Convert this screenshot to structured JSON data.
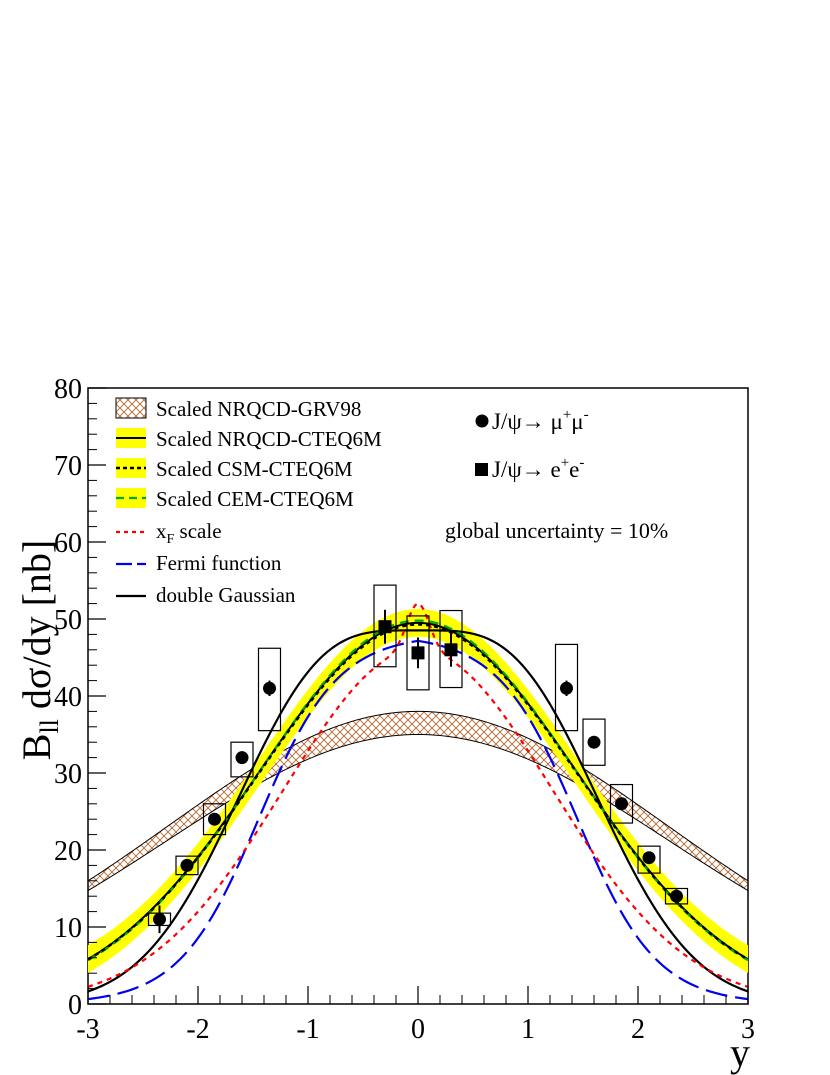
{
  "chart_data": {
    "type": "line",
    "xlabel": "y",
    "ylabel_main": "B",
    "ylabel_sub": "ll",
    "ylabel_rest": " dσ/dy  [nb]",
    "xlim": [
      -3,
      3
    ],
    "ylim": [
      0,
      80
    ],
    "x_ticks": [
      -3,
      -2,
      -1,
      0,
      1,
      2,
      3
    ],
    "y_ticks": [
      0,
      10,
      20,
      30,
      40,
      50,
      60,
      70,
      80
    ],
    "colors": {
      "band_yellow": "#ffff00",
      "hatch_brown": "#b5652e",
      "red": "#ff0000",
      "blue": "#0000ee",
      "green": "#00aa00",
      "black": "#000000"
    },
    "legend": [
      {
        "label": "Scaled NRQCD-GRV98",
        "style": "hatch"
      },
      {
        "label": "Scaled NRQCD-CTEQ6M",
        "style": "yellow-solid"
      },
      {
        "label": "Scaled CSM-CTEQ6M",
        "style": "yellow-dotted"
      },
      {
        "label": "Scaled CEM-CTEQ6M",
        "style": "yellow-green-dashed"
      },
      {
        "label": "x",
        "sub": "F",
        "label_rest": " scale",
        "style": "red-dotted"
      },
      {
        "label": "Fermi function",
        "style": "blue-longdash"
      },
      {
        "label": "double Gaussian",
        "style": "black-solid"
      }
    ],
    "channels": [
      {
        "label": "J/ψ→ μ",
        "sup1": "+",
        "label2": "μ",
        "sup2": "-",
        "marker": "circle"
      },
      {
        "label": "J/ψ→ e",
        "sup1": "+",
        "label2": "e",
        "sup2": "-",
        "marker": "square"
      }
    ],
    "annotation": "global uncertainty = 10%",
    "series": [
      {
        "name": "J/ψ→μ+μ- data",
        "marker": "circle",
        "points": [
          {
            "x": -2.35,
            "y": 11,
            "err": 1.8,
            "sys_lo": 10.2,
            "sys_hi": 11.8
          },
          {
            "x": -2.1,
            "y": 18,
            "err": 0.6,
            "sys_lo": 16.8,
            "sys_hi": 19.2
          },
          {
            "x": -1.85,
            "y": 24,
            "err": 0.7,
            "sys_lo": 22.0,
            "sys_hi": 26.0
          },
          {
            "x": -1.6,
            "y": 32,
            "err": 0.8,
            "sys_lo": 29.5,
            "sys_hi": 34.0
          },
          {
            "x": -1.35,
            "y": 41,
            "err": 1.0,
            "sys_lo": 35.5,
            "sys_hi": 46.2
          },
          {
            "x": 1.35,
            "y": 41,
            "err": 1.0,
            "sys_lo": 35.5,
            "sys_hi": 46.7
          },
          {
            "x": 1.6,
            "y": 34,
            "err": 0.8,
            "sys_lo": 31.0,
            "sys_hi": 37.0
          },
          {
            "x": 1.85,
            "y": 26,
            "err": 0.7,
            "sys_lo": 23.5,
            "sys_hi": 28.5
          },
          {
            "x": 2.1,
            "y": 19,
            "err": 0.6,
            "sys_lo": 17.0,
            "sys_hi": 20.5
          },
          {
            "x": 2.35,
            "y": 14,
            "err": 0.9,
            "sys_lo": 13.0,
            "sys_hi": 15.0
          }
        ]
      },
      {
        "name": "J/ψ→e+e- data",
        "marker": "square",
        "points": [
          {
            "x": -0.3,
            "y": 49,
            "err": 2.2,
            "sys_lo": 43.8,
            "sys_hi": 54.4
          },
          {
            "x": 0.0,
            "y": 45.6,
            "err": 2.0,
            "sys_lo": 40.8,
            "sys_hi": 50.4
          },
          {
            "x": 0.3,
            "y": 46,
            "err": 2.2,
            "sys_lo": 41.1,
            "sys_hi": 51.1
          }
        ]
      }
    ],
    "curves": {
      "grv98_band": {
        "center_y0": 36.5,
        "width": 1.5,
        "sigma": 2.28
      },
      "cteq6m_band": {
        "y0": 49.5,
        "sigma": 1.45,
        "half_width": 1.8
      },
      "csm_cteq6m": {
        "y0": 49.3,
        "sigma": 1.45
      },
      "cem_cteq6m": {
        "y0": 49.8,
        "sigma": 1.44
      },
      "xf_scale": {
        "y0": 46,
        "sigma": 1.22,
        "peak_amp": 6,
        "peak_width": 0.1
      },
      "fermi": {
        "y0": 48,
        "half_width": 1.45,
        "diffuseness": 0.36
      },
      "double_gaussian": {
        "amp": 40,
        "mu": 0.85,
        "sigma": 0.85
      }
    }
  }
}
